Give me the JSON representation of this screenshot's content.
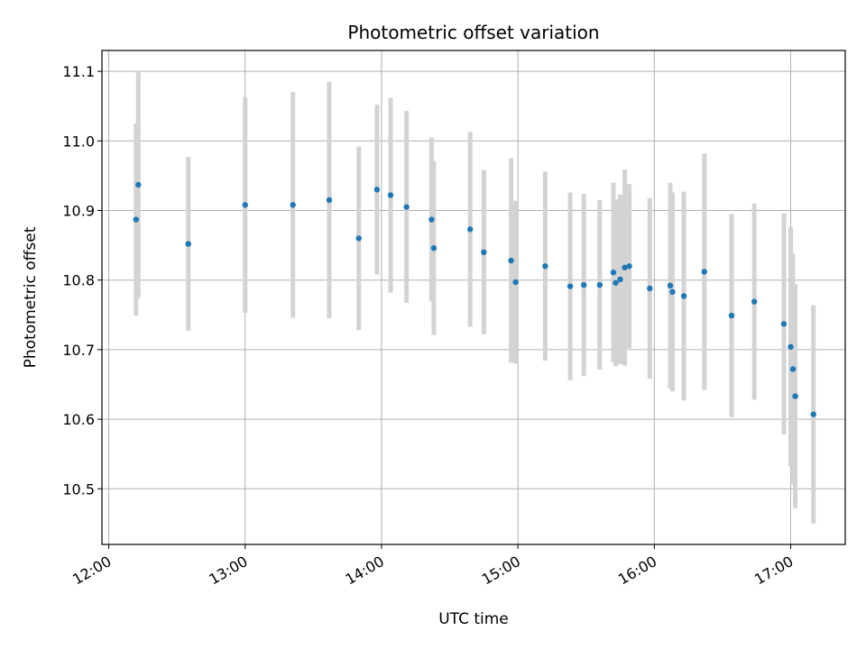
{
  "chart_data": {
    "type": "scatter",
    "title": "Photometric offset variation",
    "xlabel": "UTC time",
    "ylabel": "Photometric offset",
    "xlim": [
      "11:57",
      "17:24"
    ],
    "ylim": [
      10.42,
      11.13
    ],
    "x_ticks": [
      "12:00",
      "13:00",
      "14:00",
      "15:00",
      "16:00",
      "17:00"
    ],
    "y_ticks": [
      "10.5",
      "10.6",
      "10.7",
      "10.8",
      "10.9",
      "11.0",
      "11.1"
    ],
    "grid": true,
    "errorbar_color": "#d3d3d3",
    "point_color": "#1f77b4",
    "points": [
      {
        "x": "12:12",
        "y": 10.887,
        "err": 0.138
      },
      {
        "x": "12:13",
        "y": 10.937,
        "err": 0.163
      },
      {
        "x": "12:35",
        "y": 10.852,
        "err": 0.125
      },
      {
        "x": "13:00",
        "y": 10.908,
        "err": 0.155
      },
      {
        "x": "13:21",
        "y": 10.908,
        "err": 0.162
      },
      {
        "x": "13:37",
        "y": 10.915,
        "err": 0.17
      },
      {
        "x": "13:50",
        "y": 10.86,
        "err": 0.132
      },
      {
        "x": "13:58",
        "y": 10.93,
        "err": 0.122
      },
      {
        "x": "14:04",
        "y": 10.922,
        "err": 0.14
      },
      {
        "x": "14:11",
        "y": 10.905,
        "err": 0.138
      },
      {
        "x": "14:22",
        "y": 10.887,
        "err": 0.118
      },
      {
        "x": "14:23",
        "y": 10.846,
        "err": 0.125
      },
      {
        "x": "14:39",
        "y": 10.873,
        "err": 0.14
      },
      {
        "x": "14:45",
        "y": 10.84,
        "err": 0.118
      },
      {
        "x": "14:57",
        "y": 10.828,
        "err": 0.147
      },
      {
        "x": "14:59",
        "y": 10.797,
        "err": 0.117
      },
      {
        "x": "15:12",
        "y": 10.82,
        "err": 0.136
      },
      {
        "x": "15:23",
        "y": 10.791,
        "err": 0.135
      },
      {
        "x": "15:29",
        "y": 10.793,
        "err": 0.131
      },
      {
        "x": "15:36",
        "y": 10.793,
        "err": 0.122
      },
      {
        "x": "15:42",
        "y": 10.811,
        "err": 0.129
      },
      {
        "x": "15:43",
        "y": 10.796,
        "err": 0.12
      },
      {
        "x": "15:45",
        "y": 10.801,
        "err": 0.122
      },
      {
        "x": "15:47",
        "y": 10.818,
        "err": 0.141
      },
      {
        "x": "15:49",
        "y": 10.82,
        "err": 0.118
      },
      {
        "x": "15:58",
        "y": 10.788,
        "err": 0.13
      },
      {
        "x": "16:07",
        "y": 10.792,
        "err": 0.148
      },
      {
        "x": "16:08",
        "y": 10.783,
        "err": 0.143
      },
      {
        "x": "16:13",
        "y": 10.777,
        "err": 0.15
      },
      {
        "x": "16:22",
        "y": 10.812,
        "err": 0.17
      },
      {
        "x": "16:34",
        "y": 10.749,
        "err": 0.146
      },
      {
        "x": "16:44",
        "y": 10.769,
        "err": 0.141
      },
      {
        "x": "16:57",
        "y": 10.737,
        "err": 0.159
      },
      {
        "x": "17:00",
        "y": 10.704,
        "err": 0.172
      },
      {
        "x": "17:01",
        "y": 10.672,
        "err": 0.166
      },
      {
        "x": "17:02",
        "y": 10.633,
        "err": 0.161
      },
      {
        "x": "17:10",
        "y": 10.607,
        "err": 0.157
      }
    ]
  }
}
